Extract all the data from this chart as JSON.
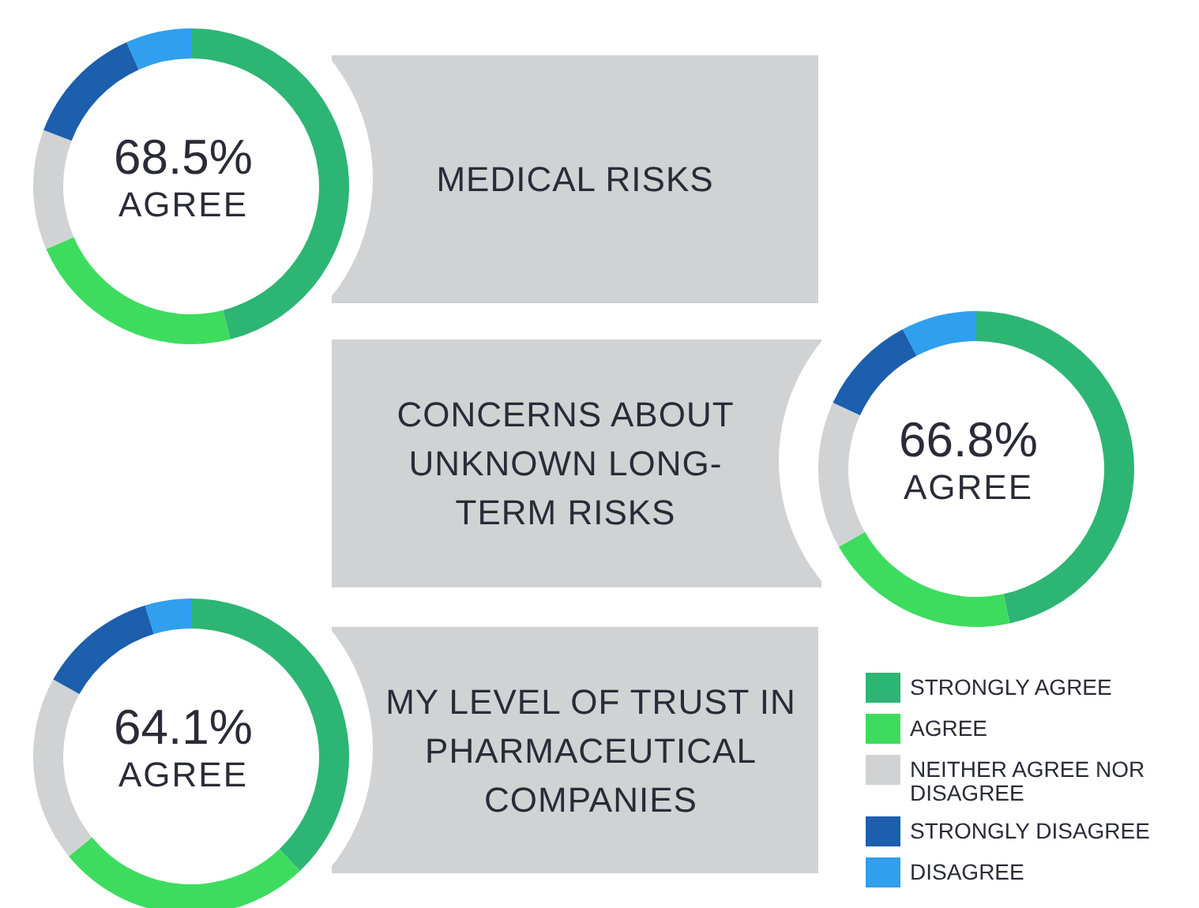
{
  "chart_data": [
    {
      "type": "donut",
      "title": "MEDICAL RISKS",
      "annotations": [
        "68.5%",
        "AGREE"
      ],
      "categories": [
        null,
        null,
        null,
        null,
        null
      ],
      "values": [
        46,
        22.5,
        12.3,
        12.5,
        6.7
      ],
      "colors": [
        "#2db574",
        "#3ddc5f",
        "#d1d2d4",
        "#1b5fad",
        "#2f9fee"
      ]
    },
    {
      "type": "donut",
      "title": "CONCERNS ABOUT UNKNOWN LONG-TERM RISKS",
      "annotations": [
        "66.8%",
        "AGREE"
      ],
      "categories": [
        null,
        null,
        null,
        null,
        null
      ],
      "values": [
        46.6,
        20.2,
        15.1,
        10.4,
        7.7
      ],
      "colors": [
        "#2db574",
        "#3ddc5f",
        "#d1d2d4",
        "#1b5fad",
        "#2f9fee"
      ]
    },
    {
      "type": "donut",
      "title": "MY LEVEL OF TRUST IN PHARMACEUTICAL COMPANIES",
      "annotations": [
        "64.1%",
        "AGREE"
      ],
      "categories": [
        "STRONGLY AGREE",
        "AGREE",
        "NEITHER AGREE NOR DISAGREE",
        "STRONGLY DISAGREE",
        "DISAGREE"
      ],
      "values": [
        37.9,
        26.2,
        19.0,
        12.2,
        4.7
      ],
      "colors": [
        "#2db574",
        "#3ddc5f",
        "#d1d2d4",
        "#1b5fad",
        "#2f9fee"
      ],
      "legend": "right"
    }
  ]
}
